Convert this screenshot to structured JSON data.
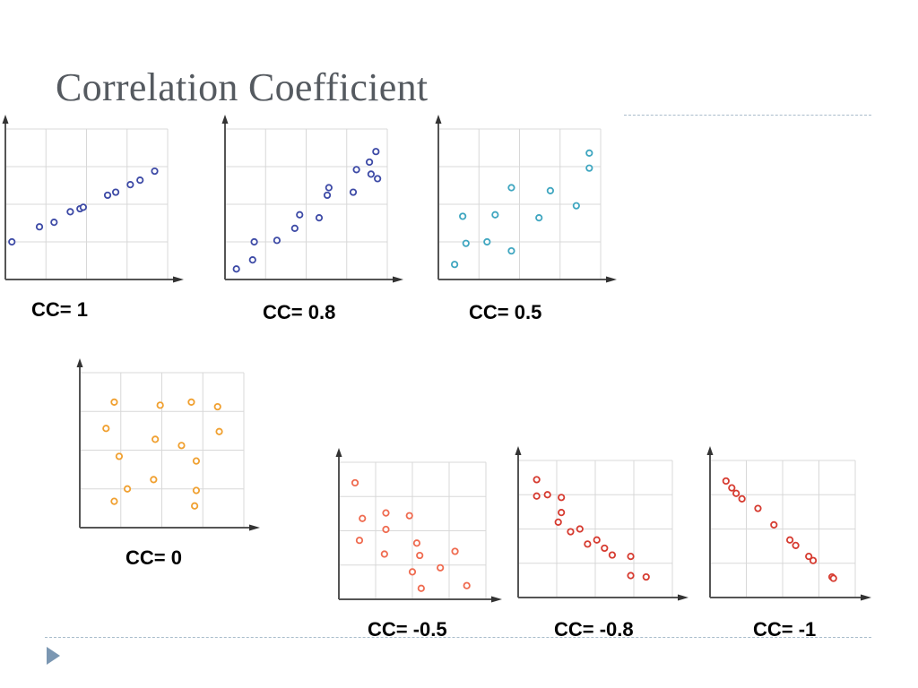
{
  "slide": {
    "title": "Correlation Coefficient"
  },
  "chart_data": [
    {
      "type": "scatter",
      "label": "CC= 1",
      "color": "#3d4aa6",
      "xlim": [
        0,
        10
      ],
      "ylim": [
        0,
        10
      ],
      "points": [
        [
          0.4,
          2.5
        ],
        [
          2.1,
          3.5
        ],
        [
          3.0,
          3.8
        ],
        [
          4.0,
          4.5
        ],
        [
          4.6,
          4.7
        ],
        [
          4.8,
          4.8
        ],
        [
          6.3,
          5.6
        ],
        [
          6.8,
          5.8
        ],
        [
          7.7,
          6.3
        ],
        [
          8.3,
          6.6
        ],
        [
          9.2,
          7.2
        ]
      ]
    },
    {
      "type": "scatter",
      "label": "CC= 0.8",
      "color": "#3d4aa6",
      "xlim": [
        0,
        10
      ],
      "ylim": [
        0,
        10
      ],
      "points": [
        [
          0.7,
          0.7
        ],
        [
          1.7,
          1.3
        ],
        [
          1.8,
          2.5
        ],
        [
          3.2,
          2.6
        ],
        [
          4.3,
          3.4
        ],
        [
          4.6,
          4.3
        ],
        [
          5.8,
          4.1
        ],
        [
          6.3,
          5.6
        ],
        [
          6.4,
          6.1
        ],
        [
          7.9,
          5.8
        ],
        [
          8.1,
          7.3
        ],
        [
          8.9,
          7.8
        ],
        [
          9.3,
          8.5
        ],
        [
          9.0,
          7.0
        ],
        [
          9.4,
          6.7
        ]
      ]
    },
    {
      "type": "scatter",
      "label": "CC= 0.5",
      "color": "#3fa6c0",
      "xlim": [
        0,
        10
      ],
      "ylim": [
        0,
        10
      ],
      "points": [
        [
          1.0,
          1.0
        ],
        [
          1.5,
          4.2
        ],
        [
          1.7,
          2.4
        ],
        [
          3.0,
          2.5
        ],
        [
          3.5,
          4.3
        ],
        [
          4.5,
          6.1
        ],
        [
          4.5,
          1.9
        ],
        [
          6.2,
          4.1
        ],
        [
          6.9,
          5.9
        ],
        [
          8.5,
          4.9
        ],
        [
          9.3,
          7.4
        ],
        [
          9.3,
          8.4
        ]
      ]
    },
    {
      "type": "scatter",
      "label": "CC= 0",
      "color": "#f0a030",
      "xlim": [
        0,
        10
      ],
      "ylim": [
        0,
        10
      ],
      "points": [
        [
          2.1,
          8.1
        ],
        [
          1.6,
          6.4
        ],
        [
          2.4,
          4.6
        ],
        [
          2.9,
          2.5
        ],
        [
          2.1,
          1.7
        ],
        [
          4.9,
          7.9
        ],
        [
          4.6,
          5.7
        ],
        [
          4.5,
          3.1
        ],
        [
          6.2,
          5.3
        ],
        [
          6.8,
          8.1
        ],
        [
          7.1,
          4.3
        ],
        [
          7.1,
          2.4
        ],
        [
          7.0,
          1.4
        ],
        [
          8.4,
          7.8
        ],
        [
          8.5,
          6.2
        ]
      ]
    },
    {
      "type": "scatter",
      "label": "CC= -0.5",
      "color": "#ef6b50",
      "xlim": [
        0,
        10
      ],
      "ylim": [
        0,
        10
      ],
      "points": [
        [
          1.1,
          8.5
        ],
        [
          1.6,
          5.9
        ],
        [
          1.4,
          4.3
        ],
        [
          3.2,
          6.3
        ],
        [
          3.2,
          5.1
        ],
        [
          3.1,
          3.3
        ],
        [
          4.8,
          6.1
        ],
        [
          5.3,
          4.1
        ],
        [
          5.5,
          3.2
        ],
        [
          5.0,
          2.0
        ],
        [
          5.6,
          0.8
        ],
        [
          6.9,
          2.3
        ],
        [
          7.9,
          3.5
        ],
        [
          8.7,
          1.0
        ]
      ]
    },
    {
      "type": "scatter",
      "label": "CC= -0.8",
      "color": "#d63b30",
      "xlim": [
        0,
        10
      ],
      "ylim": [
        0,
        10
      ],
      "points": [
        [
          1.2,
          8.6
        ],
        [
          1.2,
          7.4
        ],
        [
          1.9,
          7.5
        ],
        [
          2.8,
          7.3
        ],
        [
          2.8,
          6.2
        ],
        [
          2.6,
          5.5
        ],
        [
          3.4,
          4.8
        ],
        [
          4.0,
          5.0
        ],
        [
          4.5,
          3.9
        ],
        [
          5.1,
          4.2
        ],
        [
          5.6,
          3.6
        ],
        [
          6.1,
          3.1
        ],
        [
          7.3,
          3.0
        ],
        [
          7.3,
          1.6
        ],
        [
          8.3,
          1.5
        ]
      ]
    },
    {
      "type": "scatter",
      "label": "CC= -1",
      "color": "#d63b30",
      "xlim": [
        0,
        10
      ],
      "ylim": [
        0,
        10
      ],
      "points": [
        [
          1.1,
          8.5
        ],
        [
          1.5,
          8.0
        ],
        [
          1.8,
          7.6
        ],
        [
          2.2,
          7.2
        ],
        [
          3.3,
          6.5
        ],
        [
          4.4,
          5.3
        ],
        [
          5.5,
          4.2
        ],
        [
          5.9,
          3.8
        ],
        [
          6.8,
          3.0
        ],
        [
          7.1,
          2.7
        ],
        [
          8.4,
          1.5
        ],
        [
          8.5,
          1.4
        ]
      ]
    }
  ]
}
